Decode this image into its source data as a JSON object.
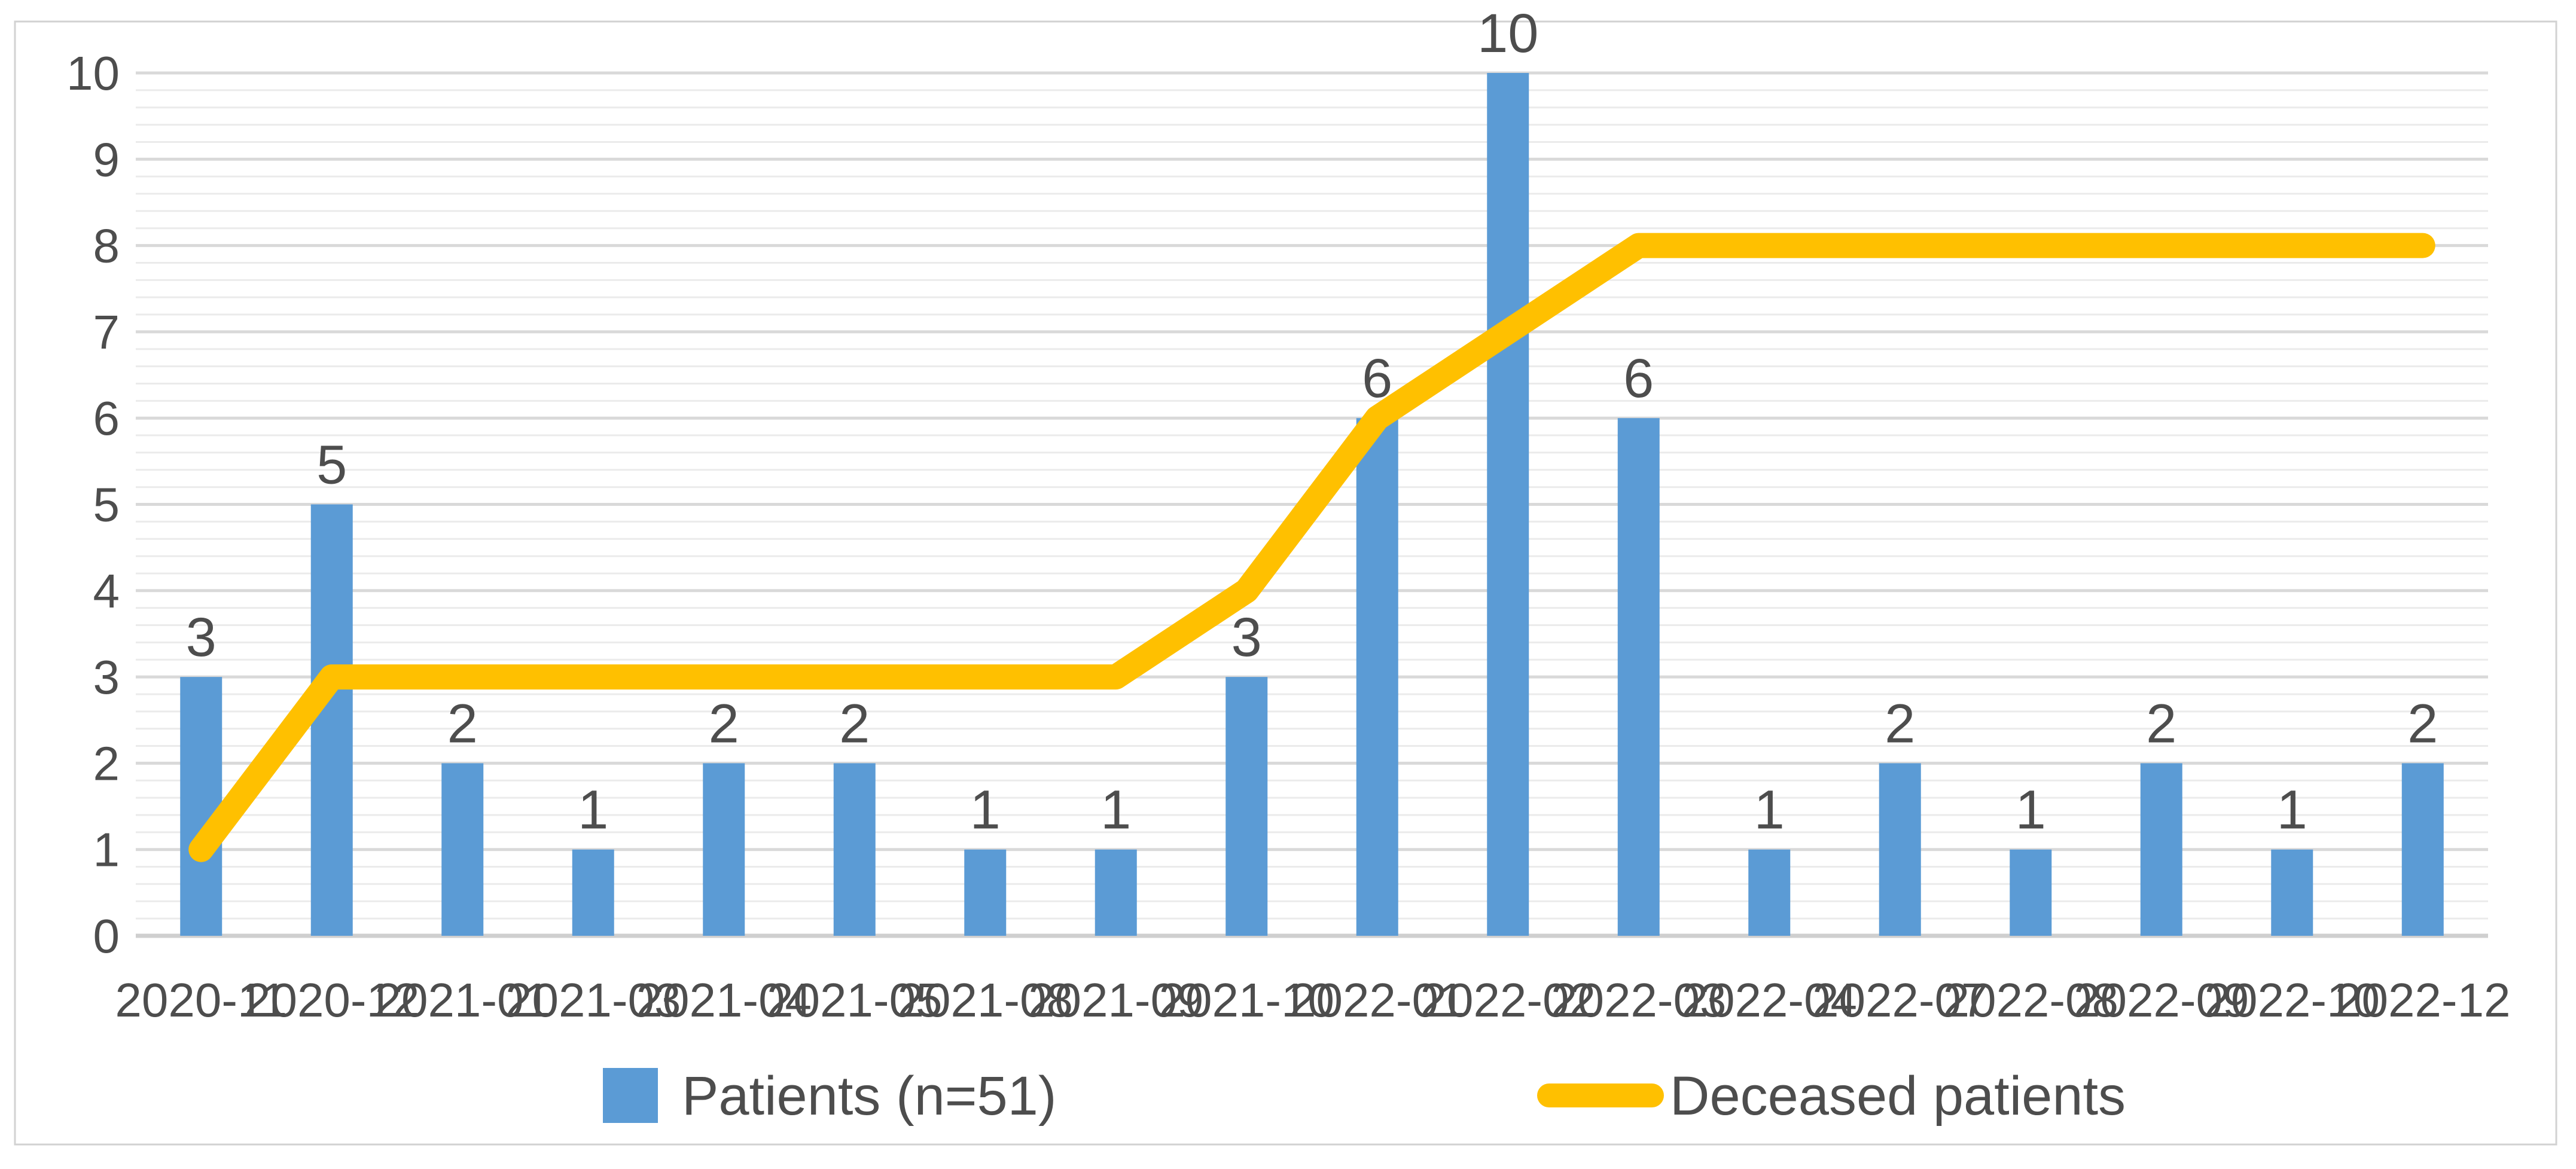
{
  "chart_data": {
    "type": "bar",
    "combo": "bar+line",
    "title": "",
    "xlabel": "",
    "ylabel": "",
    "categories": [
      "2020-11",
      "2020-12",
      "2021-01",
      "2021-03",
      "2021-04",
      "2021-05",
      "2021-08",
      "2021-09",
      "2021-10",
      "2022-01",
      "2022-02",
      "2022-03",
      "2022-04",
      "2022-07",
      "2022-08",
      "2022-09",
      "2022-10",
      "2022-12"
    ],
    "series": [
      {
        "name": "Patients (n=51)",
        "type": "bar",
        "color": "#5B9BD5",
        "values": [
          3,
          5,
          2,
          1,
          2,
          2,
          1,
          1,
          3,
          6,
          10,
          6,
          1,
          2,
          1,
          2,
          1,
          2
        ],
        "data_labels_shown": true
      },
      {
        "name": "Deceased patients",
        "type": "line",
        "color": "#FFC000",
        "values": [
          1,
          3,
          3,
          3,
          3,
          3,
          3,
          3,
          4,
          6,
          7,
          8,
          8,
          8,
          8,
          8,
          8,
          8
        ],
        "data_labels_shown": false
      }
    ],
    "ylim": [
      0,
      10
    ],
    "y_major_step": 1,
    "y_minor_step": 0.2,
    "y_ticks": [
      "0",
      "1",
      "2",
      "3",
      "4",
      "5",
      "6",
      "7",
      "8",
      "9",
      "10"
    ],
    "grid": "horizontal major+minor",
    "legend_position": "bottom"
  },
  "legend": {
    "patients_label": "Patients (n=51)",
    "deceased_label": "Deceased patients"
  },
  "colors": {
    "bar": "#5B9BD5",
    "line": "#FFC000",
    "text": "#4D4D4D",
    "gridline_major": "#D9D9D9",
    "gridline_minor": "#EBEBEB",
    "axis_line": "#CFCFCF",
    "border": "#D2D2D2",
    "background": "#FFFFFF"
  }
}
